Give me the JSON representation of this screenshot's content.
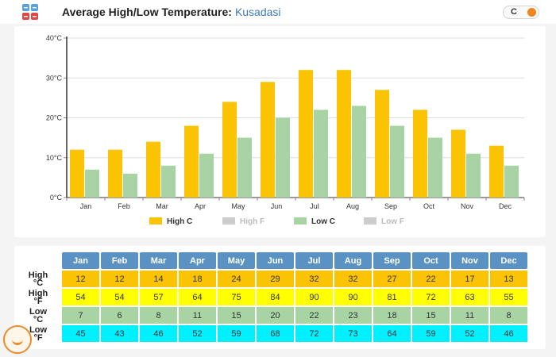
{
  "header": {
    "title": "Average High/Low Temperature:",
    "city": "Kusadasi",
    "unit_toggle_label": "C"
  },
  "colors": {
    "high_c": "#fac304",
    "high_f": "#cccccc",
    "low_c": "#a8d3a2",
    "low_f": "#cccccc",
    "table_header": "#5b92c4",
    "table_high_c": "#fac304",
    "table_high_f": "#ffff00",
    "table_low_c": "#a8d3a2",
    "table_low_f": "#00f0ff",
    "toggle_knob": "#f0841e"
  },
  "chart_data": {
    "type": "bar",
    "categories": [
      "Jan",
      "Feb",
      "Mar",
      "Apr",
      "May",
      "Jun",
      "Jul",
      "Aug",
      "Sep",
      "Oct",
      "Nov",
      "Dec"
    ],
    "series": [
      {
        "name": "High C",
        "values": [
          12,
          12,
          14,
          18,
          24,
          29,
          32,
          32,
          27,
          22,
          17,
          13
        ]
      },
      {
        "name": "Low C",
        "values": [
          7,
          6,
          8,
          11,
          15,
          20,
          22,
          23,
          18,
          15,
          11,
          8
        ]
      }
    ],
    "yticks": [
      "0°C",
      "10°C",
      "20°C",
      "30°C",
      "40°C"
    ],
    "ylim": [
      0,
      40
    ],
    "grid": true,
    "legend": {
      "placement": "bottom",
      "entries": [
        {
          "name": "High C",
          "enabled": true
        },
        {
          "name": "High F",
          "enabled": false
        },
        {
          "name": "Low C",
          "enabled": true
        },
        {
          "name": "Low F",
          "enabled": false
        }
      ]
    }
  },
  "table": {
    "months": [
      "Jan",
      "Feb",
      "Mar",
      "Apr",
      "May",
      "Jun",
      "Jul",
      "Aug",
      "Sep",
      "Oct",
      "Nov",
      "Dec"
    ],
    "rows": [
      {
        "label_top": "High",
        "label_bottom": "°C",
        "values": [
          12,
          12,
          14,
          18,
          24,
          29,
          32,
          32,
          27,
          22,
          17,
          13
        ]
      },
      {
        "label_top": "High",
        "label_bottom": "°F",
        "values": [
          54,
          54,
          57,
          64,
          75,
          84,
          90,
          90,
          81,
          72,
          63,
          55
        ]
      },
      {
        "label_top": "Low",
        "label_bottom": "°C",
        "values": [
          7,
          6,
          8,
          11,
          15,
          20,
          22,
          23,
          18,
          15,
          11,
          8
        ]
      },
      {
        "label_top": "Low",
        "label_bottom": "°F",
        "values": [
          45,
          43,
          46,
          52,
          59,
          68,
          72,
          73,
          64,
          59,
          52,
          46
        ]
      }
    ]
  }
}
